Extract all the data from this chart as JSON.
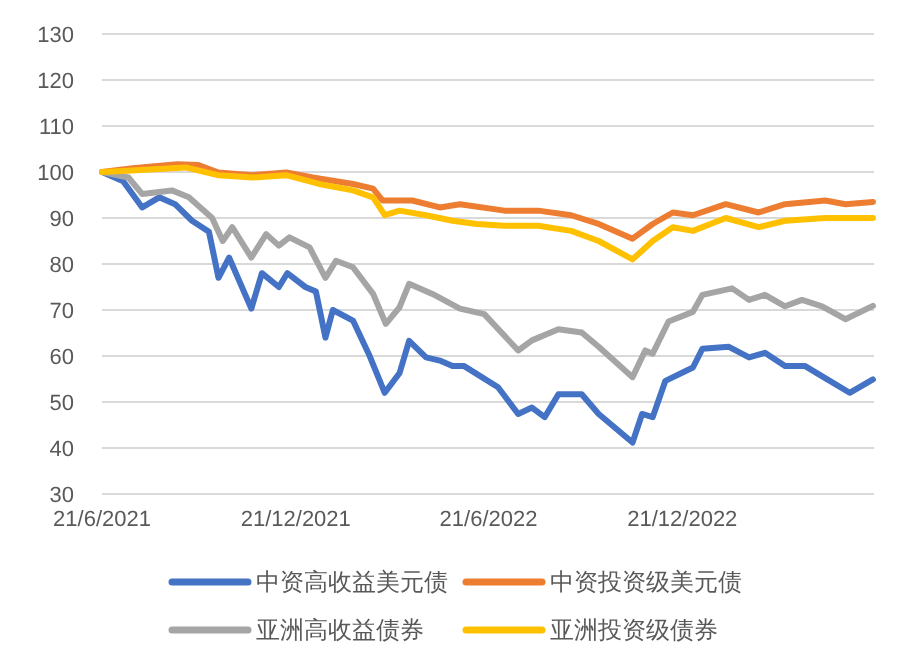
{
  "chart_data": {
    "type": "line",
    "grid": "y",
    "legend": "bottom",
    "marker": "none",
    "line_style": "solid",
    "xlim": [
      "2021-06-21",
      "2023-06-20"
    ],
    "xticks": [
      {
        "value": "2021-06-21",
        "label": "21/6/2021"
      },
      {
        "value": "2021-12-21",
        "label": "21/12/2021"
      },
      {
        "value": "2022-06-21",
        "label": "21/6/2022"
      },
      {
        "value": "2022-12-21",
        "label": "21/12/2022"
      }
    ],
    "ylim": [
      30,
      130
    ],
    "yticks": [
      30,
      40,
      50,
      60,
      70,
      80,
      90,
      100,
      110,
      120,
      130
    ],
    "series": [
      {
        "name": "中资高收益美元债",
        "color": "#4472c4",
        "x": [
          "2021-06-21",
          "2021-07-11",
          "2021-07-29",
          "2021-08-14",
          "2021-08-29",
          "2021-09-14",
          "2021-09-30",
          "2021-10-09",
          "2021-10-19",
          "2021-11-09",
          "2021-11-19",
          "2021-12-05",
          "2021-12-13",
          "2021-12-30",
          "2022-01-09",
          "2022-01-18",
          "2022-01-25",
          "2022-02-13",
          "2022-02-28",
          "2022-03-15",
          "2022-03-29",
          "2022-04-07",
          "2022-04-23",
          "2022-05-06",
          "2022-05-18",
          "2022-05-29",
          "2022-06-30",
          "2022-07-19",
          "2022-08-01",
          "2022-08-13",
          "2022-08-26",
          "2022-09-17",
          "2022-10-03",
          "2022-11-04",
          "2022-11-13",
          "2022-11-23",
          "2022-12-05",
          "2022-12-31",
          "2023-01-09",
          "2023-02-03",
          "2023-02-22",
          "2023-03-09",
          "2023-03-28",
          "2023-04-16",
          "2023-04-29",
          "2023-05-28",
          "2023-06-19"
        ],
        "values": [
          100,
          98,
          92.3,
          94.5,
          93,
          89.4,
          87,
          77,
          81.4,
          70.3,
          78,
          75,
          78,
          75,
          74,
          64,
          70,
          67.7,
          60.4,
          52,
          56.3,
          63.3,
          59.7,
          59,
          57.8,
          57.8,
          53.2,
          47.4,
          48.8,
          46.7,
          51.7,
          51.7,
          47.4,
          41.2,
          47.4,
          46.7,
          54.6,
          57.5,
          61.6,
          62,
          59.7,
          60.7,
          57.8,
          57.8,
          56,
          52,
          54.9
        ]
      },
      {
        "name": "中资投资级美元债",
        "color": "#ed7d31",
        "x": [
          "2021-06-21",
          "2021-07-20",
          "2021-08-31",
          "2021-09-20",
          "2021-10-09",
          "2021-11-10",
          "2021-12-12",
          "2022-01-06",
          "2022-02-13",
          "2022-03-04",
          "2022-03-13",
          "2022-04-10",
          "2022-05-06",
          "2022-05-25",
          "2022-07-06",
          "2022-08-07",
          "2022-09-07",
          "2022-10-03",
          "2022-11-04",
          "2022-11-23",
          "2022-12-12",
          "2022-12-31",
          "2023-01-31",
          "2023-03-03",
          "2023-03-28",
          "2023-05-05",
          "2023-05-24",
          "2023-06-19"
        ],
        "values": [
          100,
          100.8,
          101.7,
          101.5,
          99.9,
          99.3,
          99.9,
          98.8,
          97.4,
          96.4,
          93.8,
          93.8,
          92.3,
          93,
          91.6,
          91.6,
          90.6,
          88.7,
          85.5,
          88.7,
          91.2,
          90.6,
          93,
          91.2,
          93,
          93.8,
          93,
          93.5
        ]
      },
      {
        "name": "亚洲高收益债券",
        "color": "#a5a5a5",
        "x": [
          "2021-06-21",
          "2021-07-16",
          "2021-07-29",
          "2021-08-26",
          "2021-09-11",
          "2021-10-03",
          "2021-10-13",
          "2021-10-22",
          "2021-11-09",
          "2021-11-23",
          "2021-12-05",
          "2021-12-15",
          "2022-01-03",
          "2022-01-18",
          "2022-01-28",
          "2022-02-13",
          "2022-03-04",
          "2022-03-16",
          "2022-03-29",
          "2022-04-07",
          "2022-04-29",
          "2022-05-25",
          "2022-06-17",
          "2022-07-19",
          "2022-08-01",
          "2022-08-26",
          "2022-09-17",
          "2022-10-03",
          "2022-11-04",
          "2022-11-16",
          "2022-11-23",
          "2022-12-08",
          "2022-12-31",
          "2023-01-09",
          "2023-02-06",
          "2023-02-22",
          "2023-03-09",
          "2023-03-28",
          "2023-04-13",
          "2023-05-02",
          "2023-05-24",
          "2023-06-19"
        ],
        "values": [
          100,
          98.8,
          95.2,
          96,
          94.5,
          90,
          85,
          88,
          81.4,
          86.5,
          84,
          85.8,
          83.6,
          77,
          80.7,
          79.3,
          73.5,
          67,
          70.6,
          75.7,
          73.5,
          70.3,
          69.1,
          61.2,
          63.4,
          65.8,
          65.1,
          62,
          55.4,
          61.2,
          60.5,
          67.5,
          69.6,
          73.3,
          74.7,
          72.2,
          73.3,
          70.8,
          72.2,
          70.8,
          68,
          70.9
        ]
      },
      {
        "name": "亚洲投资级债券",
        "color": "#ffc000",
        "x": [
          "2021-06-21",
          "2021-07-19",
          "2021-09-08",
          "2021-10-09",
          "2021-11-10",
          "2021-12-12",
          "2022-01-12",
          "2022-02-13",
          "2022-03-04",
          "2022-03-15",
          "2022-03-29",
          "2022-04-23",
          "2022-05-18",
          "2022-06-10",
          "2022-07-06",
          "2022-08-07",
          "2022-09-07",
          "2022-10-03",
          "2022-11-04",
          "2022-11-23",
          "2022-12-12",
          "2022-12-31",
          "2023-01-31",
          "2023-03-03",
          "2023-03-28",
          "2023-05-05",
          "2023-06-19"
        ],
        "values": [
          100,
          100.3,
          101,
          99.3,
          98.8,
          99.3,
          97.4,
          96,
          94.5,
          90.6,
          91.6,
          90.6,
          89.4,
          88.7,
          88.3,
          88.3,
          87.2,
          85,
          81,
          85,
          88,
          87.2,
          90,
          88,
          89.4,
          90,
          90
        ]
      }
    ]
  }
}
